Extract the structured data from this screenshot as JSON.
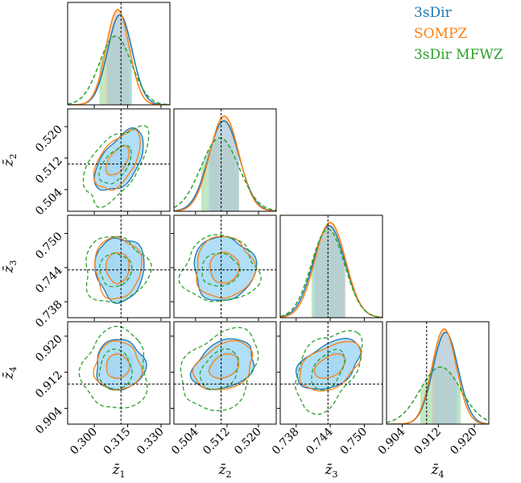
{
  "chart_data": {
    "type": "corner",
    "parameters": [
      {
        "label": "z̄",
        "sub": "1",
        "truth": 0.312,
        "range": [
          0.288,
          0.334
        ],
        "ticks": [
          0.3,
          0.315,
          0.33
        ],
        "tick_labels": [
          "0.300",
          "0.315",
          "0.330"
        ]
      },
      {
        "label": "z̄",
        "sub": "2",
        "truth": 0.5105,
        "range": [
          0.4985,
          0.5245
        ],
        "ticks": [
          0.504,
          0.512,
          0.52
        ],
        "tick_labels": [
          "0.504",
          "0.512",
          "0.520"
        ]
      },
      {
        "label": "z̄",
        "sub": "3",
        "truth": 0.7436,
        "range": [
          0.7352,
          0.7532
        ],
        "ticks": [
          0.738,
          0.744,
          0.75
        ],
        "tick_labels": [
          "0.738",
          "0.744",
          "0.750"
        ]
      },
      {
        "label": "z̄",
        "sub": "4",
        "truth": 0.9094,
        "range": [
          0.9005,
          0.9232
        ],
        "ticks": [
          0.904,
          0.912,
          0.92
        ],
        "tick_labels": [
          "0.904",
          "0.912",
          "0.920"
        ]
      }
    ],
    "series": [
      {
        "name": "3sDir",
        "color": "#1f77b4",
        "fill": "#9dd3f5",
        "style": "solid",
        "mean": [
          0.3115,
          0.5112,
          0.7438,
          0.9136
        ],
        "sigma": [
          0.0055,
          0.0039,
          0.0028,
          0.0028
        ]
      },
      {
        "name": "SOMPZ",
        "color": "#ff7f0e",
        "fill": "#e8b890",
        "style": "solid",
        "mean": [
          0.3105,
          0.5113,
          0.744,
          0.9133
        ],
        "sigma": [
          0.0052,
          0.0037,
          0.0027,
          0.0027
        ]
      },
      {
        "name": "3sDir MFWZ",
        "color": "#2ca02c",
        "fill": "#8fd48f",
        "style": "dashed",
        "mean": [
          0.3095,
          0.5102,
          0.7436,
          0.9125
        ],
        "sigma": [
          0.0072,
          0.0048,
          0.0029,
          0.0045
        ]
      }
    ],
    "correlations": {
      "1-2": 0.55,
      "1-3": 0.0,
      "1-4": 0.0,
      "2-3": 0.0,
      "2-4": 0.3,
      "3-4": 0.45
    },
    "legend_placement": "top-right"
  }
}
